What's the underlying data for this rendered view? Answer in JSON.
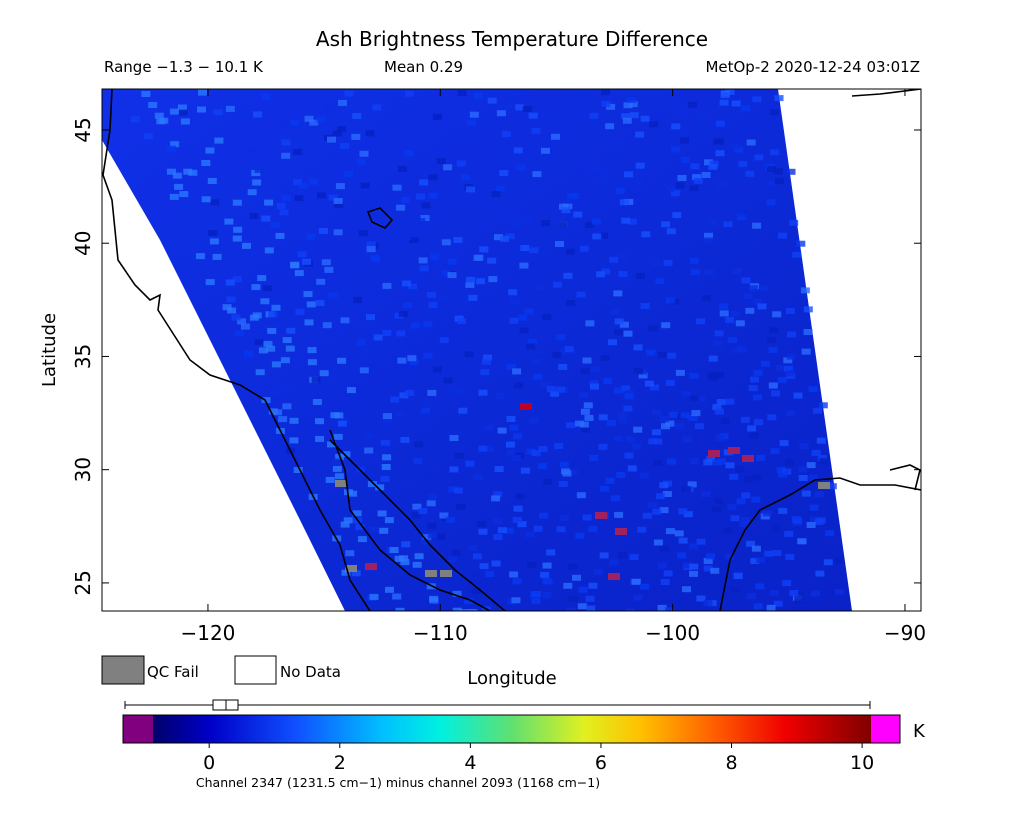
{
  "header": {
    "title": "Ash Brightness Temperature Difference",
    "range": "Range −1.3 − 10.1 K",
    "mean": "Mean 0.29",
    "source": "MetOp-2 2020-12-24 03:01Z"
  },
  "map": {
    "x_label": "Longitude",
    "y_label": "Latitude",
    "xlim": [
      -124.56,
      -89.31
    ],
    "ylim": [
      23.76,
      46.81
    ],
    "xticks": [
      {
        "value": -120,
        "label": "−120"
      },
      {
        "value": -110,
        "label": "−110"
      },
      {
        "value": -100,
        "label": "−100"
      },
      {
        "value": -90,
        "label": "−90"
      }
    ],
    "yticks": [
      25,
      30,
      35,
      40,
      45
    ]
  },
  "legend": {
    "qc_fail": "QC Fail",
    "no_data": "No Data"
  },
  "colorbar": {
    "lim": [
      -1.32,
      10.58
    ],
    "ticks": [
      0,
      2,
      4,
      6,
      8,
      10
    ],
    "unit": "K",
    "caption": "Channel 2347 (1231.5 cm−1) minus channel 2093 (1168 cm−1)"
  }
}
